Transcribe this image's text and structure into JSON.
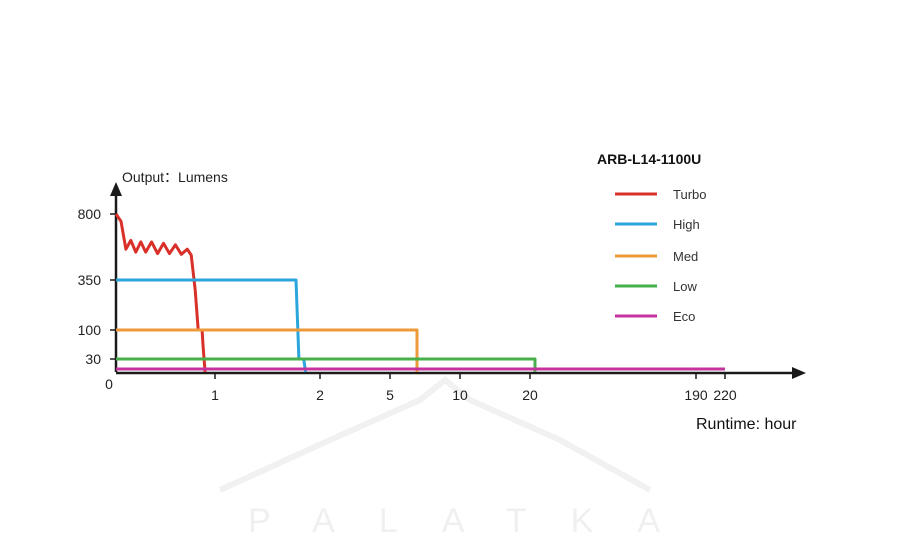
{
  "chart_data": {
    "type": "line",
    "title": "ARB-L14-1100U",
    "ylabel": "Output：Lumens",
    "xlabel": "Runtime: hour",
    "x_ticks": [
      "1",
      "2",
      "5",
      "10",
      "20",
      "190",
      "220"
    ],
    "x_origin_label": "0",
    "y_ticks": [
      "30",
      "100",
      "350",
      "800"
    ],
    "legend_placement": "top-right",
    "grid": false,
    "series": [
      {
        "name": "Turbo",
        "color": "#d9302a",
        "points": [
          [
            0,
            800
          ],
          [
            0.05,
            750
          ],
          [
            0.1,
            560
          ],
          [
            0.15,
            620
          ],
          [
            0.2,
            540
          ],
          [
            0.25,
            610
          ],
          [
            0.3,
            540
          ],
          [
            0.36,
            610
          ],
          [
            0.42,
            530
          ],
          [
            0.48,
            600
          ],
          [
            0.54,
            530
          ],
          [
            0.6,
            590
          ],
          [
            0.66,
            525
          ],
          [
            0.72,
            560
          ],
          [
            0.76,
            520
          ],
          [
            0.8,
            300
          ],
          [
            0.83,
            100
          ],
          [
            0.87,
            100
          ],
          [
            0.88,
            60
          ],
          [
            0.9,
            0
          ]
        ]
      },
      {
        "name": "High",
        "color": "#2aa6dc",
        "points": [
          [
            0,
            350
          ],
          [
            1.75,
            350
          ],
          [
            1.78,
            30
          ],
          [
            1.83,
            30
          ],
          [
            1.85,
            0
          ]
        ]
      },
      {
        "name": "Med",
        "color": "#ee9a3a",
        "points": [
          [
            0,
            100
          ],
          [
            6.5,
            100
          ],
          [
            6.5,
            0
          ]
        ]
      },
      {
        "name": "Low",
        "color": "#47b04b",
        "points": [
          [
            0,
            30
          ],
          [
            21,
            30
          ],
          [
            21,
            0
          ]
        ]
      },
      {
        "name": "Eco",
        "color": "#c6339e",
        "points": [
          [
            0,
            5
          ],
          [
            220,
            5
          ]
        ]
      }
    ]
  },
  "watermark": "PALATKA"
}
